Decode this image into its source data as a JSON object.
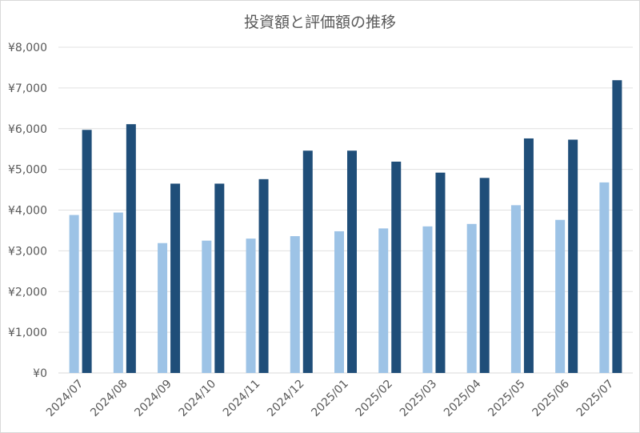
{
  "chart_data": {
    "type": "bar",
    "title": "投資額と評価額の推移",
    "xlabel": "",
    "ylabel": "",
    "ylim": [
      0,
      8000
    ],
    "y_ticks": [
      "¥0",
      "¥1,000",
      "¥2,000",
      "¥3,000",
      "¥4,000",
      "¥5,000",
      "¥6,000",
      "¥7,000",
      "¥8,000"
    ],
    "grid": true,
    "legend": "none",
    "categories": [
      "2024/07",
      "2024/08",
      "2024/09",
      "2024/10",
      "2024/11",
      "2024/12",
      "2025/01",
      "2025/02",
      "2025/03",
      "2025/04",
      "2025/05",
      "2025/06",
      "2025/07"
    ],
    "series": [
      {
        "color": "#9dc3e6",
        "values": [
          3880,
          3940,
          3190,
          3250,
          3300,
          3360,
          3480,
          3550,
          3600,
          3660,
          4120,
          3760,
          4680
        ]
      },
      {
        "color": "#1f4e79",
        "values": [
          5970,
          6110,
          4650,
          4650,
          4760,
          5460,
          5460,
          5190,
          4920,
          4790,
          5760,
          5730,
          7190
        ]
      }
    ]
  }
}
